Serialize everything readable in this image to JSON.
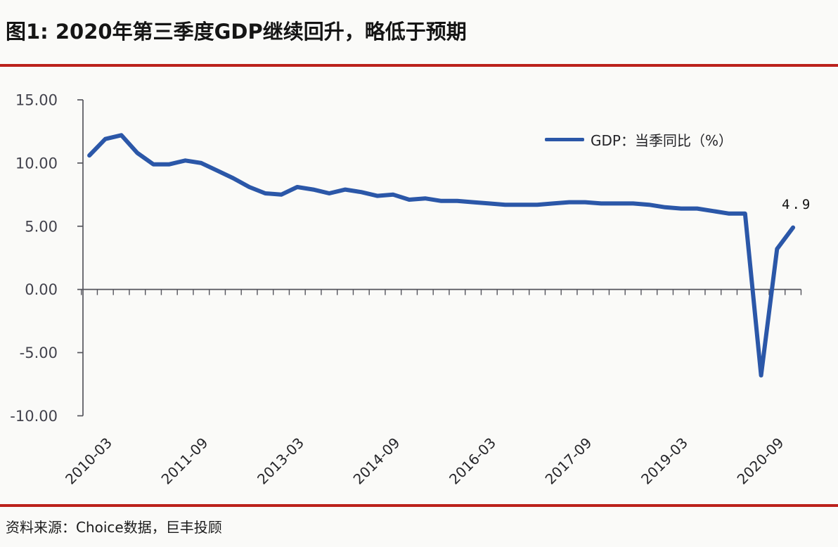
{
  "header": {
    "title": "图1: 2020年第三季度GDP继续回升，略低于预期"
  },
  "footer": {
    "source": "资料来源：Choice数据，巨丰投顾"
  },
  "colors": {
    "line_blue": "#2b57a8",
    "accent_red": "#bb211c",
    "axis_gray": "#55555d",
    "y_label_color": "#43434d",
    "x_label_color": "#26262a"
  },
  "chart_data": {
    "type": "line",
    "legend": "GDP：当季同比（%）",
    "legend_position": "top-right-inside",
    "grid": false,
    "ylim": [
      -10,
      15
    ],
    "yticks": [
      15,
      10,
      5,
      0,
      -5,
      -10
    ],
    "ytick_labels": [
      "15.00",
      "10.00",
      "5.00",
      "0.00",
      "-5.00",
      "-10.00"
    ],
    "xtick_labels": [
      "2010-03",
      "2011-09",
      "2013-03",
      "2014-09",
      "2016-03",
      "2017-09",
      "2019-03",
      "2020-09"
    ],
    "xtick_indices": [
      2,
      8,
      14,
      20,
      26,
      32,
      38,
      44
    ],
    "annotation": {
      "text": "4.9",
      "x": "2020-09",
      "value": 4.9
    },
    "x": [
      "2009-09",
      "2009-12",
      "2010-03",
      "2010-06",
      "2010-09",
      "2010-12",
      "2011-03",
      "2011-06",
      "2011-09",
      "2011-12",
      "2012-03",
      "2012-06",
      "2012-09",
      "2012-12",
      "2013-03",
      "2013-06",
      "2013-09",
      "2013-12",
      "2014-03",
      "2014-06",
      "2014-09",
      "2014-12",
      "2015-03",
      "2015-06",
      "2015-09",
      "2015-12",
      "2016-03",
      "2016-06",
      "2016-09",
      "2016-12",
      "2017-03",
      "2017-06",
      "2017-09",
      "2017-12",
      "2018-03",
      "2018-06",
      "2018-09",
      "2018-12",
      "2019-03",
      "2019-06",
      "2019-09",
      "2019-12",
      "2020-03",
      "2020-06",
      "2020-09"
    ],
    "series": [
      {
        "name": "GDP：当季同比（%）",
        "values": [
          10.6,
          11.9,
          12.2,
          10.8,
          9.9,
          9.9,
          10.2,
          10.0,
          9.4,
          8.8,
          8.1,
          7.6,
          7.5,
          8.1,
          7.9,
          7.6,
          7.9,
          7.7,
          7.4,
          7.5,
          7.1,
          7.2,
          7.0,
          7.0,
          6.9,
          6.8,
          6.7,
          6.7,
          6.7,
          6.8,
          6.9,
          6.9,
          6.8,
          6.8,
          6.8,
          6.7,
          6.5,
          6.4,
          6.4,
          6.2,
          6.0,
          6.0,
          -6.8,
          3.2,
          4.9
        ]
      }
    ]
  }
}
